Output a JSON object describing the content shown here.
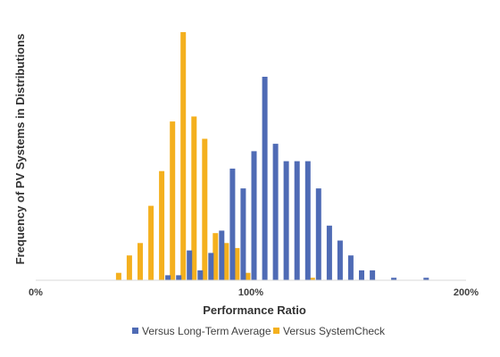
{
  "chart_data": {
    "type": "bar",
    "xlabel": "Performance Ratio",
    "ylabel": "Frequency of PV Systems in Distributions",
    "x_ticks": [
      "0%",
      "100%",
      "200%"
    ],
    "xlim": [
      0,
      200
    ],
    "ylim": [
      0,
      100
    ],
    "grid": false,
    "legend_position": "bottom",
    "series": [
      {
        "name": "Versus Long-Term Average",
        "color": "#4F6BB5",
        "x": [
          60,
          65,
          70,
          75,
          80,
          85,
          90,
          95,
          100,
          105,
          110,
          115,
          120,
          125,
          130,
          135,
          140,
          145,
          150,
          155,
          165,
          180
        ],
        "values": [
          2,
          2,
          12,
          4,
          11,
          20,
          45,
          37,
          52,
          82,
          55,
          48,
          48,
          48,
          37,
          22,
          16,
          10,
          4,
          4,
          1,
          1
        ]
      },
      {
        "name": "Versus SystemCheck",
        "color": "#F4B01E",
        "x": [
          40,
          45,
          50,
          55,
          60,
          65,
          70,
          75,
          80,
          85,
          90,
          95,
          100,
          130
        ],
        "values": [
          3,
          10,
          15,
          30,
          44,
          64,
          100,
          66,
          57,
          19,
          15,
          13,
          3,
          1
        ]
      }
    ]
  }
}
